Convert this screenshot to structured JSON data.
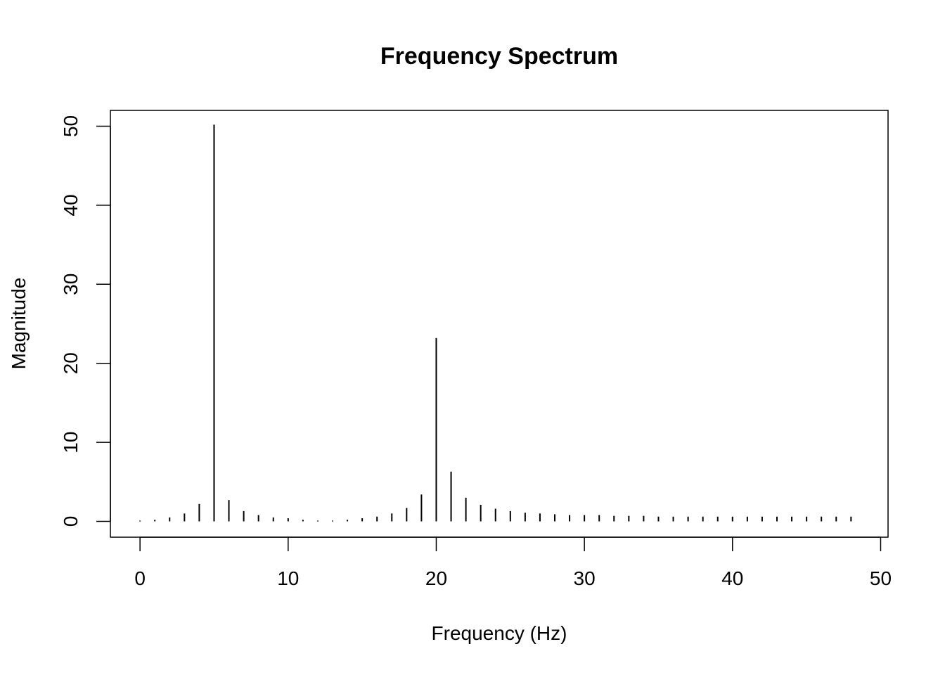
{
  "chart_data": {
    "type": "bar",
    "style": "histogram-spikes",
    "title": "Frequency Spectrum",
    "xlabel": "Frequency (Hz)",
    "ylabel": "Magnitude",
    "xlim": [
      -2,
      50.5
    ],
    "ylim": [
      -2,
      52
    ],
    "xticks": [
      0,
      10,
      20,
      30,
      40,
      50
    ],
    "yticks": [
      0,
      10,
      20,
      30,
      40,
      50
    ],
    "grid": false,
    "legend": "none",
    "color": "#000000",
    "x": [
      0,
      1,
      2,
      3,
      4,
      5,
      6,
      7,
      8,
      9,
      10,
      11,
      12,
      13,
      14,
      15,
      16,
      17,
      18,
      19,
      20,
      21,
      22,
      23,
      24,
      25,
      26,
      27,
      28,
      29,
      30,
      31,
      32,
      33,
      34,
      35,
      36,
      37,
      38,
      39,
      40,
      41,
      42,
      43,
      44,
      45,
      46,
      47,
      48
    ],
    "values": [
      0.1,
      0.2,
      0.5,
      1.0,
      2.2,
      50.2,
      2.7,
      1.3,
      0.8,
      0.5,
      0.4,
      0.2,
      0.1,
      0.1,
      0.2,
      0.4,
      0.6,
      1.0,
      1.7,
      3.4,
      23.2,
      6.3,
      3.0,
      2.1,
      1.6,
      1.3,
      1.1,
      1.0,
      0.9,
      0.8,
      0.8,
      0.8,
      0.7,
      0.7,
      0.7,
      0.6,
      0.6,
      0.6,
      0.6,
      0.6,
      0.6,
      0.6,
      0.6,
      0.6,
      0.6,
      0.6,
      0.6,
      0.6,
      0.6
    ]
  }
}
